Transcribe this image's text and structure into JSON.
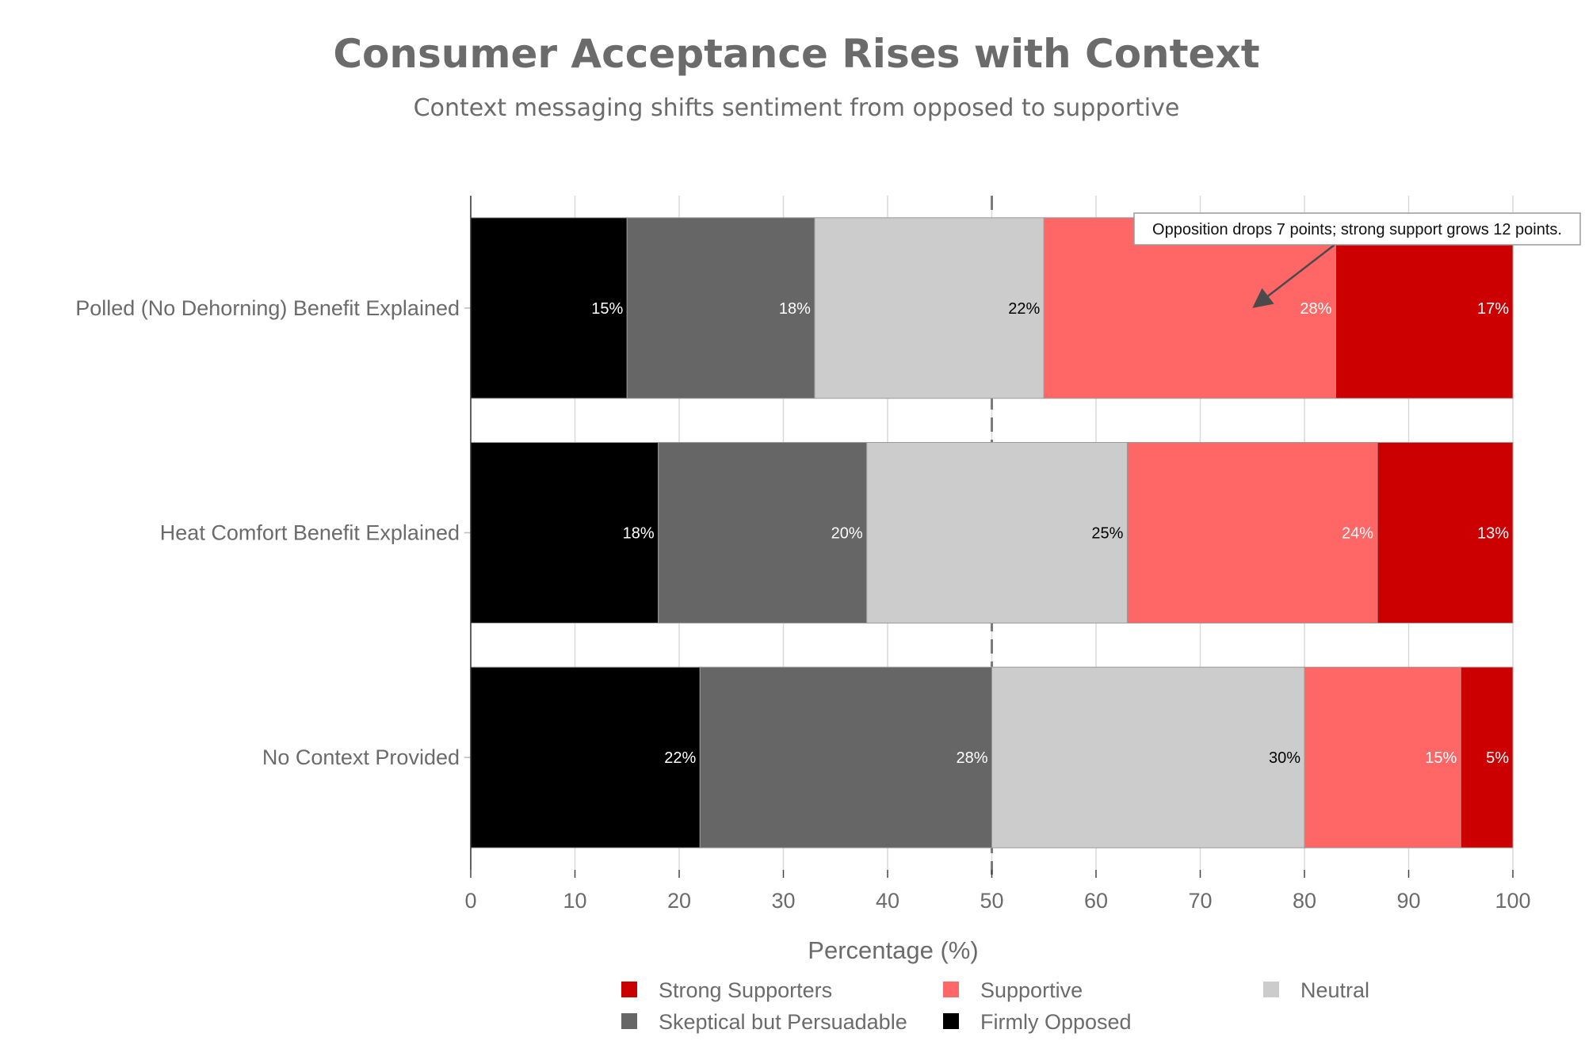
{
  "chart_data": {
    "type": "bar",
    "orientation": "horizontal",
    "stacked": true,
    "title": "Consumer Acceptance Rises with Context",
    "subtitle": "Context messaging shifts sentiment from opposed to supportive",
    "xlabel": "Percentage (%)",
    "ylabel": "",
    "xlim": [
      0,
      100
    ],
    "xticks": [
      0,
      10,
      20,
      30,
      40,
      50,
      60,
      70,
      80,
      90,
      100
    ],
    "reference_line_x": 50,
    "grid": true,
    "legend_position": "bottom",
    "categories": [
      "No Context Provided",
      "Heat Comfort Benefit Explained",
      "Polled (No Dehorning) Benefit Explained"
    ],
    "series": [
      {
        "name": "Firmly Opposed",
        "color": "#000000",
        "label_color": "#ffffff",
        "values": [
          22,
          18,
          15
        ]
      },
      {
        "name": "Skeptical but Persuadable",
        "color": "#666666",
        "label_color": "#ffffff",
        "values": [
          28,
          20,
          18
        ]
      },
      {
        "name": "Neutral",
        "color": "#cccccc",
        "label_color": "#000000",
        "values": [
          30,
          25,
          22
        ]
      },
      {
        "name": "Supportive",
        "color": "#ff6666",
        "label_color": "#ffffff",
        "values": [
          15,
          24,
          28
        ]
      },
      {
        "name": "Strong Supporters",
        "color": "#cc0000",
        "label_color": "#ffffff",
        "values": [
          5,
          13,
          17
        ]
      }
    ],
    "legend_order": [
      "Strong Supporters",
      "Supportive",
      "Neutral",
      "Skeptical but Persuadable",
      "Firmly Opposed"
    ],
    "annotation": {
      "text": "Opposition drops 7 points; strong support grows 12 points.",
      "target_category": "Polled (No Dehorning) Benefit Explained",
      "target_x": 75
    }
  }
}
